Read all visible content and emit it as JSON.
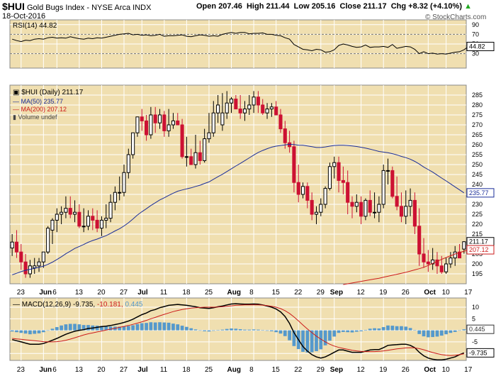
{
  "header": {
    "symbol": "$HUI",
    "name": "Gold Bugs Index - NYSE Arca",
    "exchange": "INDX",
    "date": "18-Oct-2016",
    "open_label": "Open",
    "open": "207.46",
    "high_label": "High",
    "high": "211.44",
    "low_label": "Low",
    "low": "205.16",
    "close_label": "Close",
    "close": "211.17",
    "chg_label": "Chg",
    "chg": "+8.32 (+4.10%)",
    "chg_arrow": "▲",
    "watermark": "© StockCharts.com"
  },
  "colors": {
    "panel_bg": "#f0dfb0",
    "up": "#000000",
    "down": "#cc1133",
    "ma50": "#1a2d99",
    "ma200": "#cc1b1b",
    "macd_hist": "#5599cc"
  },
  "x_axis": {
    "labels": [
      {
        "i": 2,
        "label": "23",
        "bold": false
      },
      {
        "i": 7,
        "label": "Jun",
        "bold": true
      },
      {
        "i": 10,
        "label": "6",
        "bold": false
      },
      {
        "i": 15,
        "label": "13",
        "bold": false
      },
      {
        "i": 20,
        "label": "20",
        "bold": false
      },
      {
        "i": 25,
        "label": "27",
        "bold": false
      },
      {
        "i": 29,
        "label": "Jul",
        "bold": true
      },
      {
        "i": 34,
        "label": "11",
        "bold": false
      },
      {
        "i": 39,
        "label": "18",
        "bold": false
      },
      {
        "i": 44,
        "label": "25",
        "bold": false
      },
      {
        "i": 49,
        "label": "Aug",
        "bold": true
      },
      {
        "i": 54,
        "label": "8",
        "bold": false
      },
      {
        "i": 59,
        "label": "15",
        "bold": false
      },
      {
        "i": 64,
        "label": "22",
        "bold": false
      },
      {
        "i": 69,
        "label": "29",
        "bold": false
      },
      {
        "i": 72,
        "label": "Sep",
        "bold": true
      },
      {
        "i": 78,
        "label": "12",
        "bold": false
      },
      {
        "i": 83,
        "label": "19",
        "bold": false
      },
      {
        "i": 88,
        "label": "26",
        "bold": false
      },
      {
        "i": 93,
        "label": "Oct",
        "bold": true
      },
      {
        "i": 97,
        "label": "10",
        "bold": false
      },
      {
        "i": 102,
        "label": "17",
        "bold": false
      }
    ]
  },
  "chart_data": [
    {
      "type": "line",
      "name": "RSI(14)",
      "legend": "RSI(14) 44.82",
      "current_label": "44.82",
      "ylim": [
        0,
        100
      ],
      "ticks": [
        30,
        50,
        70,
        90
      ],
      "ref_lines": [
        30,
        70
      ],
      "values": [
        60,
        57,
        55,
        58,
        57,
        60,
        61,
        60,
        63,
        64,
        62,
        63,
        62,
        65,
        63,
        61,
        60,
        62,
        61,
        63,
        62,
        64,
        66,
        68,
        70,
        71,
        72,
        69,
        70,
        68,
        69,
        67,
        68,
        70,
        66,
        67,
        67,
        68,
        69,
        66,
        65,
        67,
        69,
        68,
        66,
        67,
        66,
        70,
        72,
        74,
        72,
        74,
        74,
        71,
        72,
        72,
        73,
        70,
        70,
        68,
        67,
        63,
        60,
        49,
        44,
        39,
        38,
        36,
        39,
        38,
        33,
        34,
        38,
        47,
        50,
        48,
        45,
        43,
        44,
        48,
        43,
        44,
        44,
        45,
        43,
        49,
        41,
        43,
        45,
        44,
        39,
        30,
        34,
        30,
        31,
        29,
        30,
        29,
        31,
        33,
        34,
        38,
        44.82
      ]
    },
    {
      "type": "candlestick",
      "name": "$HUI (Daily)",
      "legend": "$HUI (Daily) 211.17",
      "ylim": [
        190,
        290
      ],
      "ticks": [
        195,
        200,
        205,
        210,
        215,
        220,
        225,
        230,
        235,
        240,
        245,
        250,
        255,
        260,
        265,
        270,
        275,
        280,
        285
      ],
      "open": [
        208,
        211,
        206,
        201,
        195,
        198,
        199,
        201,
        206,
        217,
        222,
        225,
        226,
        228,
        225,
        226,
        219,
        219,
        224,
        222,
        218,
        222,
        223,
        231,
        236,
        236,
        246,
        255,
        266,
        274,
        272,
        265,
        275,
        271,
        275,
        267,
        270,
        272,
        270,
        254,
        254,
        250,
        256,
        252,
        263,
        266,
        276,
        270,
        276,
        281,
        283,
        278,
        276,
        278,
        280,
        284,
        280,
        276,
        278,
        279,
        275,
        268,
        261,
        259,
        241,
        235,
        239,
        232,
        225,
        226,
        230,
        238,
        249,
        251,
        242,
        241,
        231,
        229,
        231,
        224,
        232,
        226,
        226,
        230,
        247,
        247,
        234,
        229,
        224,
        229,
        232,
        219,
        205,
        201,
        200,
        202,
        199,
        196,
        200,
        203,
        206,
        207.46
      ],
      "high": [
        215,
        217,
        210,
        205,
        202,
        203,
        203,
        206,
        219,
        223,
        228,
        229,
        234,
        234,
        232,
        230,
        228,
        227,
        228,
        227,
        224,
        230,
        235,
        239,
        244,
        250,
        258,
        266,
        274,
        278,
        275,
        279,
        279,
        278,
        277,
        278,
        276,
        276,
        273,
        264,
        258,
        265,
        262,
        268,
        276,
        282,
        285,
        286,
        287,
        284,
        285,
        285,
        282,
        285,
        287,
        287,
        283,
        281,
        281,
        282,
        278,
        272,
        267,
        262,
        250,
        241,
        241,
        236,
        229,
        233,
        239,
        251,
        254,
        254,
        249,
        247,
        234,
        235,
        234,
        233,
        237,
        236,
        234,
        250,
        253,
        249,
        244,
        236,
        237,
        238,
        236,
        228,
        213,
        207,
        208,
        206,
        204,
        203,
        206,
        209,
        210,
        211.44
      ],
      "low": [
        204,
        203,
        197,
        193,
        193,
        195,
        196,
        198,
        205,
        210,
        216,
        220,
        223,
        223,
        221,
        218,
        216,
        217,
        217,
        216,
        214,
        218,
        221,
        227,
        232,
        234,
        243,
        253,
        264,
        267,
        262,
        263,
        266,
        268,
        264,
        264,
        268,
        270,
        253,
        249,
        250,
        248,
        250,
        251,
        261,
        264,
        271,
        267,
        273,
        276,
        278,
        273,
        272,
        275,
        276,
        276,
        275,
        273,
        274,
        275,
        266,
        258,
        256,
        236,
        231,
        233,
        228,
        222,
        220,
        224,
        228,
        237,
        243,
        236,
        235,
        225,
        223,
        226,
        220,
        222,
        224,
        223,
        221,
        228,
        240,
        233,
        227,
        221,
        220,
        224,
        215,
        199,
        198,
        196,
        197,
        195,
        195,
        195,
        198,
        199,
        204,
        205.16
      ],
      "close": [
        211,
        206,
        201,
        195,
        199,
        199,
        201,
        206,
        218,
        222,
        225,
        226,
        228,
        225,
        226,
        219,
        219,
        224,
        222,
        218,
        222,
        223,
        231,
        236,
        236,
        246,
        255,
        266,
        274,
        272,
        265,
        275,
        271,
        275,
        267,
        270,
        272,
        270,
        254,
        254,
        250,
        256,
        252,
        263,
        266,
        276,
        280,
        276,
        281,
        283,
        278,
        276,
        278,
        280,
        284,
        280,
        276,
        278,
        279,
        275,
        268,
        261,
        259,
        241,
        235,
        239,
        232,
        225,
        226,
        230,
        238,
        249,
        251,
        242,
        241,
        231,
        229,
        231,
        224,
        232,
        226,
        226,
        230,
        247,
        247,
        234,
        229,
        224,
        229,
        232,
        219,
        205,
        201,
        200,
        202,
        199,
        196,
        200,
        203,
        206,
        203,
        211.17
      ],
      "series": [
        {
          "name": "MA(50)",
          "legend": "MA(50) 235.77",
          "current_label": "235.77",
          "values": [
            194.5,
            195.3,
            196.1,
            196.8,
            197.3,
            197.8,
            198.3,
            198.9,
            199.8,
            200.9,
            202.2,
            203.6,
            205.1,
            206.4,
            207.8,
            208.8,
            209.8,
            210.9,
            211.8,
            212.5,
            213.4,
            214.2,
            215.4,
            216.6,
            217.7,
            219.1,
            220.7,
            222.6,
            224.6,
            226.3,
            227.8,
            229.4,
            230.8,
            232.2,
            233.3,
            234.5,
            235.6,
            236.6,
            237.2,
            237.8,
            238.3,
            239.0,
            239.6,
            240.5,
            241.3,
            242.6,
            243.9,
            245.1,
            246.5,
            247.9,
            249.3,
            250.6,
            252.0,
            253.4,
            254.8,
            256.1,
            257.1,
            258.0,
            258.8,
            259.3,
            259.6,
            259.9,
            260.2,
            260.1,
            259.8,
            259.7,
            259.4,
            259.0,
            258.6,
            258.6,
            258.9,
            259.3,
            259.6,
            259.7,
            259.7,
            259.6,
            259.4,
            259.1,
            258.7,
            258.3,
            257.8,
            257.2,
            256.6,
            256.3,
            256.0,
            255.5,
            254.9,
            254.1,
            253.5,
            252.7,
            251.6,
            250.3,
            248.8,
            247.5,
            246.2,
            244.7,
            243.2,
            241.8,
            240.3,
            238.8,
            237.3,
            235.77
          ]
        },
        {
          "name": "MA(200)",
          "legend": "MA(200) 207.12",
          "current_label": "207.12",
          "values": [
            null,
            null,
            null,
            null,
            null,
            null,
            null,
            null,
            null,
            null,
            null,
            null,
            null,
            null,
            null,
            null,
            null,
            null,
            null,
            null,
            null,
            null,
            null,
            null,
            null,
            null,
            null,
            null,
            null,
            null,
            null,
            null,
            null,
            null,
            null,
            null,
            null,
            null,
            null,
            null,
            null,
            null,
            null,
            null,
            null,
            null,
            null,
            null,
            null,
            null,
            null,
            null,
            null,
            null,
            null,
            null,
            null,
            null,
            null,
            null,
            null,
            null,
            null,
            null,
            null,
            null,
            null,
            null,
            null,
            null,
            null,
            null,
            null,
            null,
            189.6,
            190.0,
            190.4,
            190.8,
            191.2,
            191.6,
            192.0,
            192.4,
            192.8,
            193.3,
            193.8,
            194.3,
            194.8,
            195.3,
            195.8,
            196.4,
            197.0,
            197.6,
            198.3,
            199.2,
            200.3,
            201.3,
            202.3,
            203.2,
            204.1,
            205.0,
            205.7,
            206.4,
            207.12
          ]
        },
        {
          "name": "Volume",
          "legend": "Volume undef",
          "values": []
        }
      ]
    },
    {
      "type": "line",
      "name": "MACD(12,26,9)",
      "legend_prefix": "MACD(12,26,9)",
      "legend_macd": "-9.735",
      "legend_signal": "-10.181",
      "legend_hist": "0.445",
      "label_hist": "0.445",
      "label_macd": "-9.735",
      "ylim": [
        -13,
        14
      ],
      "ticks": [
        -10,
        -5,
        0,
        5,
        10
      ],
      "macd": [
        -4,
        -4.5,
        -5,
        -5.5,
        -6,
        -6,
        -6,
        -5.7,
        -5,
        -4.3,
        -3.5,
        -2.6,
        -1.7,
        -1,
        -0.4,
        0,
        0.3,
        0.8,
        1,
        1.3,
        1.6,
        1.8,
        2.1,
        2.5,
        2.9,
        3.4,
        4,
        4.8,
        5.8,
        6.8,
        7.5,
        8.5,
        9,
        9.8,
        10.3,
        10.8,
        11,
        11.2,
        11,
        10.8,
        10.5,
        10.2,
        9.8,
        9.6,
        9.5,
        9.8,
        10.2,
        10.5,
        11,
        11.4,
        11.5,
        11.4,
        11.3,
        11.3,
        11.4,
        11.3,
        11,
        10.5,
        10,
        9.2,
        8,
        6,
        3,
        -1,
        -4,
        -7,
        -9,
        -10.5,
        -11.5,
        -12,
        -11.5,
        -10.5,
        -9.5,
        -8.5,
        -8.5,
        -9,
        -9.5,
        -9.5,
        -9.5,
        -9,
        -8.5,
        -8.3,
        -8.3,
        -7.5,
        -6.5,
        -6.3,
        -6.2,
        -6,
        -6,
        -6.5,
        -7.5,
        -9.5,
        -11,
        -12,
        -12.5,
        -12.8,
        -12.8,
        -12.5,
        -12,
        -11.5,
        -10.5,
        -9.735
      ],
      "signal": [
        -3.5,
        -3.7,
        -3.9,
        -4.1,
        -4.3,
        -4.5,
        -4.7,
        -4.9,
        -5,
        -5,
        -4.9,
        -4.7,
        -4.3,
        -3.8,
        -3.2,
        -2.6,
        -2,
        -1.5,
        -1.1,
        -0.7,
        -0.3,
        0.1,
        0.5,
        0.9,
        1.3,
        1.7,
        2.1,
        2.6,
        3.1,
        3.7,
        4.3,
        5,
        5.6,
        6.3,
        6.9,
        7.5,
        8.1,
        8.6,
        9,
        9.3,
        9.6,
        9.8,
        9.9,
        10,
        10,
        10,
        10.1,
        10.2,
        10.4,
        10.6,
        10.8,
        10.9,
        11,
        11,
        11,
        11,
        10.9,
        10.7,
        10.4,
        10,
        9.4,
        8.5,
        7.3,
        5.8,
        4.1,
        2.3,
        0.6,
        -1,
        -2.5,
        -3.8,
        -5,
        -6,
        -6.8,
        -7.4,
        -7.8,
        -8.2,
        -8.6,
        -8.9,
        -9.1,
        -9.2,
        -9.2,
        -9.2,
        -9.1,
        -8.9,
        -8.6,
        -8.3,
        -8,
        -7.8,
        -7.6,
        -7.5,
        -7.6,
        -7.9,
        -8.4,
        -9,
        -9.6,
        -10.1,
        -10.5,
        -10.8,
        -10.9,
        -10.8,
        -10.5,
        -10.181
      ]
    }
  ]
}
